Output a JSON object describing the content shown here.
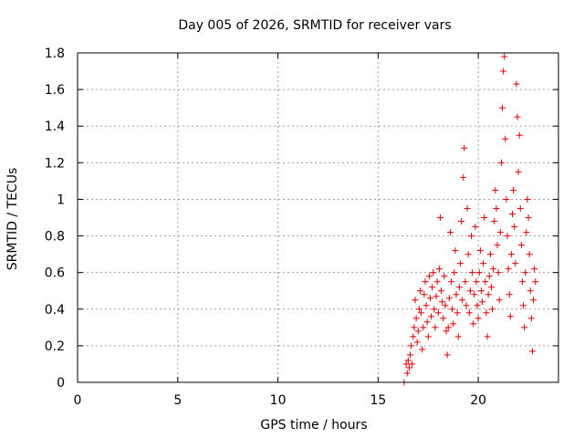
{
  "chart_data": {
    "type": "scatter",
    "title": "Day 005 of 2026, SRMTID for receiver vars",
    "xlabel": "GPS time / hours",
    "ylabel": "SRMTID / TECUs",
    "xlim": [
      0,
      24
    ],
    "ylim": [
      0,
      1.8
    ],
    "xticks": [
      0,
      5,
      10,
      15,
      20
    ],
    "xtick_labels": [
      "0",
      "5",
      "10",
      "15",
      "20"
    ],
    "yticks": [
      0,
      0.2,
      0.4,
      0.6,
      0.8,
      1.0,
      1.2,
      1.4,
      1.6,
      1.8
    ],
    "ytick_labels": [
      "0",
      "0.2",
      "0.4",
      "0.6",
      "0.8",
      "1",
      "1.2",
      "1.4",
      "1.6",
      "1.8"
    ],
    "grid": true,
    "marker": "plus",
    "color": "#e00000",
    "series": [
      {
        "name": "SRMTID",
        "points": [
          [
            16.3,
            0.0
          ],
          [
            16.4,
            0.1
          ],
          [
            16.45,
            0.05
          ],
          [
            16.5,
            0.12
          ],
          [
            16.55,
            0.08
          ],
          [
            16.6,
            0.15
          ],
          [
            16.65,
            0.2
          ],
          [
            16.7,
            0.1
          ],
          [
            16.75,
            0.25
          ],
          [
            16.8,
            0.3
          ],
          [
            16.85,
            0.45
          ],
          [
            16.9,
            0.35
          ],
          [
            16.95,
            0.22
          ],
          [
            17.0,
            0.28
          ],
          [
            17.05,
            0.4
          ],
          [
            17.1,
            0.5
          ],
          [
            17.15,
            0.38
          ],
          [
            17.2,
            0.18
          ],
          [
            17.25,
            0.3
          ],
          [
            17.3,
            0.48
          ],
          [
            17.35,
            0.55
          ],
          [
            17.4,
            0.42
          ],
          [
            17.45,
            0.33
          ],
          [
            17.5,
            0.25
          ],
          [
            17.55,
            0.58
          ],
          [
            17.6,
            0.46
          ],
          [
            17.65,
            0.36
          ],
          [
            17.7,
            0.52
          ],
          [
            17.75,
            0.6
          ],
          [
            17.8,
            0.4
          ],
          [
            17.85,
            0.3
          ],
          [
            17.9,
            0.47
          ],
          [
            17.95,
            0.55
          ],
          [
            18.0,
            0.38
          ],
          [
            18.05,
            0.62
          ],
          [
            18.1,
            0.9
          ],
          [
            18.15,
            0.5
          ],
          [
            18.2,
            0.44
          ],
          [
            18.25,
            0.35
          ],
          [
            18.3,
            0.58
          ],
          [
            18.35,
            0.42
          ],
          [
            18.4,
            0.28
          ],
          [
            18.45,
            0.15
          ],
          [
            18.5,
            0.3
          ],
          [
            18.55,
            0.46
          ],
          [
            18.6,
            0.82
          ],
          [
            18.65,
            0.55
          ],
          [
            18.7,
            0.4
          ],
          [
            18.75,
            0.32
          ],
          [
            18.8,
            0.6
          ],
          [
            18.85,
            0.72
          ],
          [
            18.9,
            0.48
          ],
          [
            18.95,
            0.38
          ],
          [
            19.0,
            0.25
          ],
          [
            19.05,
            0.52
          ],
          [
            19.1,
            0.65
          ],
          [
            19.15,
            0.88
          ],
          [
            19.2,
            0.45
          ],
          [
            19.25,
            1.12
          ],
          [
            19.3,
            1.28
          ],
          [
            19.35,
            0.55
          ],
          [
            19.4,
            0.42
          ],
          [
            19.45,
            0.95
          ],
          [
            19.5,
            0.7
          ],
          [
            19.55,
            0.38
          ],
          [
            19.6,
            0.5
          ],
          [
            19.65,
            0.8
          ],
          [
            19.7,
            0.6
          ],
          [
            19.75,
            0.32
          ],
          [
            19.8,
            0.48
          ],
          [
            19.85,
            0.85
          ],
          [
            19.9,
            0.55
          ],
          [
            19.95,
            0.42
          ],
          [
            20.0,
            0.35
          ],
          [
            20.05,
            0.6
          ],
          [
            20.1,
            0.72
          ],
          [
            20.15,
            0.5
          ],
          [
            20.2,
            0.44
          ],
          [
            20.25,
            0.65
          ],
          [
            20.3,
            0.9
          ],
          [
            20.35,
            0.55
          ],
          [
            20.4,
            0.38
          ],
          [
            20.45,
            0.25
          ],
          [
            20.5,
            0.48
          ],
          [
            20.55,
            0.58
          ],
          [
            20.6,
            0.7
          ],
          [
            20.65,
            0.52
          ],
          [
            20.7,
            0.4
          ],
          [
            20.75,
            0.62
          ],
          [
            20.8,
            0.88
          ],
          [
            20.85,
            1.05
          ],
          [
            20.9,
            0.95
          ],
          [
            20.95,
            0.75
          ],
          [
            21.0,
            0.6
          ],
          [
            21.05,
            0.45
          ],
          [
            21.1,
            0.82
          ],
          [
            21.15,
            1.2
          ],
          [
            21.2,
            1.5
          ],
          [
            21.25,
            1.7
          ],
          [
            21.3,
            1.78
          ],
          [
            21.35,
            1.33
          ],
          [
            21.4,
            1.0
          ],
          [
            21.45,
            0.8
          ],
          [
            21.5,
            0.62
          ],
          [
            21.55,
            0.48
          ],
          [
            21.6,
            0.36
          ],
          [
            21.65,
            0.7
          ],
          [
            21.7,
            0.92
          ],
          [
            21.75,
            1.05
          ],
          [
            21.8,
            0.85
          ],
          [
            21.85,
            0.65
          ],
          [
            21.9,
            1.63
          ],
          [
            21.95,
            1.45
          ],
          [
            22.0,
            1.15
          ],
          [
            22.05,
            1.35
          ],
          [
            22.1,
            0.95
          ],
          [
            22.15,
            0.75
          ],
          [
            22.2,
            0.55
          ],
          [
            22.25,
            0.42
          ],
          [
            22.3,
            0.3
          ],
          [
            22.35,
            0.6
          ],
          [
            22.4,
            0.82
          ],
          [
            22.45,
            1.0
          ],
          [
            22.5,
            0.9
          ],
          [
            22.55,
            0.7
          ],
          [
            22.6,
            0.5
          ],
          [
            22.65,
            0.35
          ],
          [
            22.7,
            0.17
          ],
          [
            22.75,
            0.45
          ],
          [
            22.8,
            0.62
          ],
          [
            22.85,
            0.55
          ]
        ]
      }
    ]
  }
}
